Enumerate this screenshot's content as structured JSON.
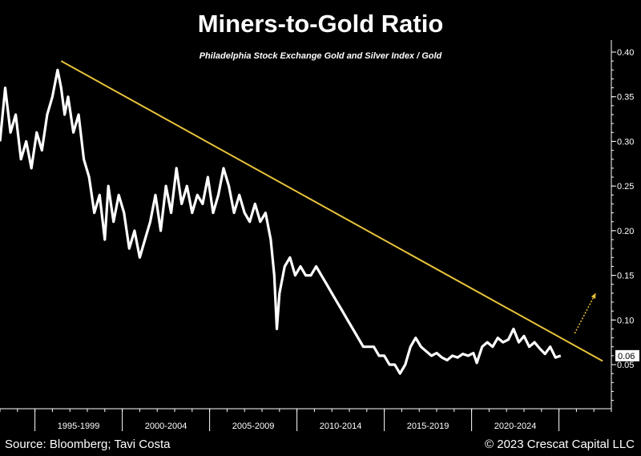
{
  "chart_data": {
    "type": "line",
    "title": "Miners-to-Gold Ratio",
    "subtitle": "Philadelphia Stock Exchange Gold and Silver Index / Gold",
    "xlabel": "",
    "ylabel": "",
    "ylim": [
      0.0,
      0.4
    ],
    "y_ticks": [
      "0.05",
      "0.10",
      "0.15",
      "0.20",
      "0.25",
      "0.30",
      "0.35",
      "0.40"
    ],
    "y_tick_values": [
      0.05,
      0.1,
      0.15,
      0.2,
      0.25,
      0.3,
      0.35,
      0.4
    ],
    "x_range": [
      1993.0,
      2028.0
    ],
    "x_categories": [
      "1995-1999",
      "2000-2004",
      "2005-2009",
      "2010-2014",
      "2015-2019",
      "2020-2024"
    ],
    "x_category_spans": [
      [
        1995,
        2000
      ],
      [
        2000,
        2005
      ],
      [
        2005,
        2010
      ],
      [
        2010,
        2015
      ],
      [
        2015,
        2020
      ],
      [
        2020,
        2025
      ]
    ],
    "last_value_label": "0.06",
    "last_value": 0.06,
    "series": [
      {
        "color": "#ffffff",
        "x": [
          1993.0,
          1993.3,
          1993.6,
          1993.9,
          1994.2,
          1994.5,
          1994.8,
          1995.1,
          1995.4,
          1995.7,
          1996.0,
          1996.3,
          1996.5,
          1996.7,
          1996.9,
          1997.2,
          1997.5,
          1997.8,
          1998.1,
          1998.4,
          1998.7,
          1999.0,
          1999.2,
          1999.5,
          1999.8,
          2000.1,
          2000.4,
          2000.7,
          2001.0,
          2001.3,
          2001.6,
          2001.9,
          2002.2,
          2002.5,
          2002.8,
          2003.1,
          2003.4,
          2003.7,
          2004.0,
          2004.3,
          2004.6,
          2004.9,
          2005.2,
          2005.5,
          2005.8,
          2006.1,
          2006.4,
          2006.7,
          2007.0,
          2007.3,
          2007.6,
          2007.9,
          2008.2,
          2008.5,
          2008.7,
          2008.85,
          2009.0,
          2009.3,
          2009.6,
          2009.9,
          2010.2,
          2010.5,
          2010.8,
          2011.1,
          2011.4,
          2011.7,
          2012.0,
          2012.3,
          2012.6,
          2012.9,
          2013.2,
          2013.5,
          2013.8,
          2014.1,
          2014.4,
          2014.7,
          2015.0,
          2015.3,
          2015.6,
          2015.9,
          2016.2,
          2016.5,
          2016.8,
          2017.1,
          2017.4,
          2017.7,
          2018.0,
          2018.3,
          2018.6,
          2018.9,
          2019.2,
          2019.5,
          2019.8,
          2020.1,
          2020.3,
          2020.6,
          2020.9,
          2021.2,
          2021.5,
          2021.8,
          2022.1,
          2022.4,
          2022.7,
          2023.0,
          2023.3,
          2023.6,
          2023.9,
          2024.2,
          2024.5,
          2024.8,
          2025.1
        ],
        "values": [
          0.3,
          0.36,
          0.31,
          0.33,
          0.28,
          0.3,
          0.27,
          0.31,
          0.29,
          0.33,
          0.35,
          0.38,
          0.36,
          0.33,
          0.35,
          0.31,
          0.33,
          0.28,
          0.26,
          0.22,
          0.24,
          0.19,
          0.25,
          0.21,
          0.24,
          0.22,
          0.18,
          0.2,
          0.17,
          0.19,
          0.21,
          0.24,
          0.2,
          0.25,
          0.22,
          0.27,
          0.23,
          0.25,
          0.22,
          0.24,
          0.23,
          0.26,
          0.22,
          0.24,
          0.27,
          0.25,
          0.22,
          0.24,
          0.22,
          0.21,
          0.23,
          0.21,
          0.22,
          0.19,
          0.15,
          0.09,
          0.13,
          0.16,
          0.17,
          0.15,
          0.16,
          0.15,
          0.15,
          0.16,
          0.15,
          0.14,
          0.13,
          0.12,
          0.11,
          0.1,
          0.09,
          0.08,
          0.07,
          0.07,
          0.07,
          0.06,
          0.06,
          0.05,
          0.05,
          0.04,
          0.05,
          0.07,
          0.08,
          0.07,
          0.065,
          0.06,
          0.063,
          0.058,
          0.055,
          0.06,
          0.058,
          0.062,
          0.06,
          0.063,
          0.052,
          0.07,
          0.075,
          0.07,
          0.08,
          0.075,
          0.078,
          0.09,
          0.075,
          0.082,
          0.07,
          0.075,
          0.068,
          0.062,
          0.07,
          0.058,
          0.06
        ]
      }
    ],
    "trendline": {
      "color": "#e8c33a",
      "x": [
        1996.5,
        2027.5
      ],
      "values": [
        0.39,
        0.054
      ]
    },
    "arrow": {
      "color": "#e8c33a",
      "x": [
        2025.9,
        2027.1
      ],
      "values": [
        0.085,
        0.13
      ]
    },
    "grid": false,
    "legend": "none"
  },
  "footer": {
    "source": "Source: Bloomberg; Tavi Costa",
    "copyright": "© 2023 Crescat Capital LLC"
  }
}
